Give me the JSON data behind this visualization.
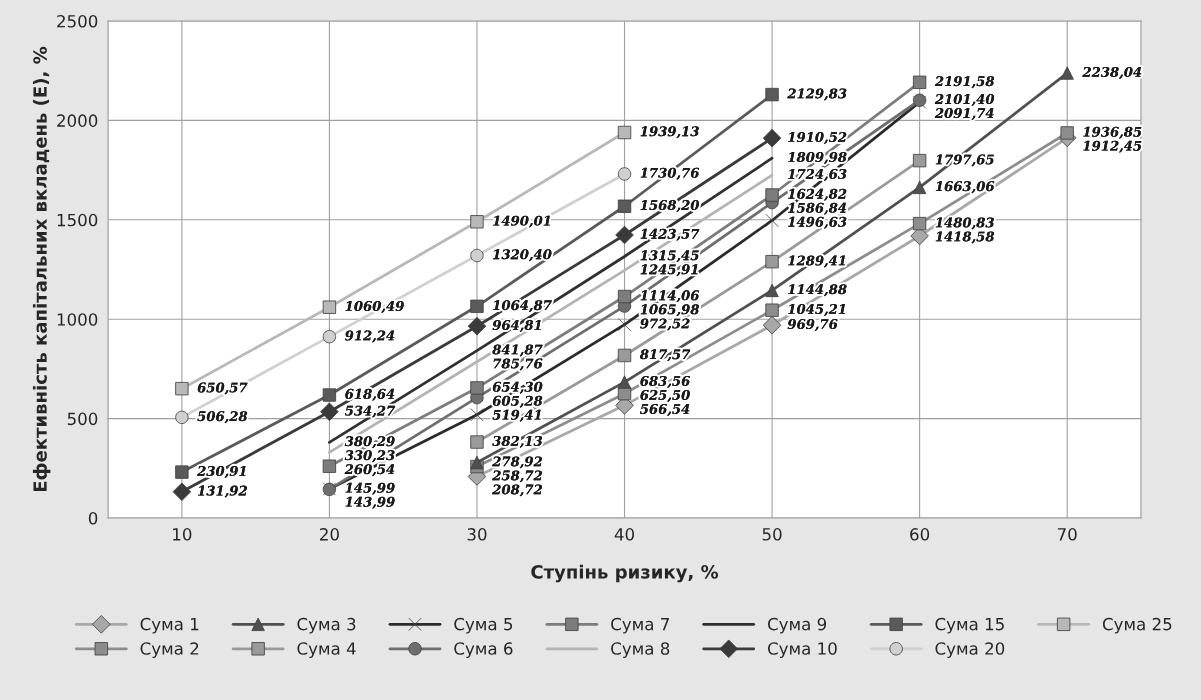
{
  "chart_data": {
    "type": "line",
    "xlabel": "Ступінь ризику, %",
    "ylabel": "Ефективність капітальних вкладень (E), %",
    "categories": [
      "10",
      "20",
      "30",
      "40",
      "50",
      "60",
      "70"
    ],
    "ylim": [
      0,
      2500
    ],
    "yticks": [
      0,
      500,
      1000,
      1500,
      2000,
      2500
    ],
    "grid": true,
    "legend": "bottom",
    "series": [
      {
        "name": "Сума 1",
        "color": "#a8a8a8",
        "marker": "diamond",
        "values": [
          null,
          null,
          208.72,
          566.54,
          969.76,
          1418.58,
          1912.45
        ],
        "value_labels": [
          null,
          null,
          "208,72",
          "566,54",
          "969,76",
          "1418,58",
          "1912,45"
        ]
      },
      {
        "name": "Сума 2",
        "color": "#8c8c8c",
        "marker": "square",
        "values": [
          null,
          null,
          258.72,
          625.5,
          1045.21,
          1480.83,
          1936.85
        ],
        "value_labels": [
          null,
          null,
          "258,72",
          "625,50",
          "1045,21",
          "1480,83",
          "1936,85"
        ]
      },
      {
        "name": "Сума 3",
        "color": "#505050",
        "marker": "triangle",
        "values": [
          null,
          null,
          278.92,
          683.56,
          1144.88,
          1663.06,
          2238.04
        ],
        "value_labels": [
          null,
          null,
          "278,92",
          "683,56",
          "1144,88",
          "1663,06",
          "2238,04"
        ]
      },
      {
        "name": "Сума 4",
        "color": "#9a9a9a",
        "marker": "square",
        "values": [
          null,
          null,
          382.13,
          817.57,
          1289.41,
          1797.65,
          null
        ],
        "value_labels": [
          null,
          null,
          "382,13",
          "817,57",
          "1289,41",
          "1797,65",
          null
        ]
      },
      {
        "name": "Сума 5",
        "color": "#2a2a2a",
        "marker": "cross",
        "values": [
          null,
          145.99,
          519.41,
          972.52,
          1496.63,
          2091.74,
          null
        ],
        "value_labels": [
          null,
          "145,99",
          "519,41",
          "972,52",
          "1496,63",
          "2091,74",
          null
        ]
      },
      {
        "name": "Сума 6",
        "color": "#6e6e6e",
        "marker": "circle",
        "values": [
          null,
          143.99,
          605.28,
          1065.98,
          1586.84,
          2101.4,
          null
        ],
        "value_labels": [
          null,
          "143,99",
          "605,28",
          "1065,98",
          "1586,84",
          "2101,40",
          null
        ]
      },
      {
        "name": "Сума 7",
        "color": "#7c7c7c",
        "marker": "square",
        "values": [
          null,
          260.54,
          654.3,
          1114.06,
          1624.82,
          2191.58,
          null
        ],
        "value_labels": [
          null,
          "260,54",
          "654,30",
          "1114,06",
          "1624,82",
          "2191,58",
          null
        ]
      },
      {
        "name": "Сума 8",
        "color": "#b4b4b4",
        "marker": "none",
        "values": [
          null,
          330.23,
          785.76,
          1245.91,
          1724.63,
          null,
          null
        ],
        "value_labels": [
          null,
          "330,23",
          "785,76",
          "1245,91",
          "1724,63",
          null,
          null
        ]
      },
      {
        "name": "Сума 9",
        "color": "#303030",
        "marker": "none",
        "values": [
          null,
          380.29,
          841.87,
          1315.45,
          1809.98,
          null,
          null
        ],
        "value_labels": [
          null,
          "380,29",
          "841,87",
          "1315,45",
          "1809,98",
          null,
          null
        ]
      },
      {
        "name": "Сума 10",
        "color": "#3a3a3a",
        "marker": "diamond",
        "values": [
          131.92,
          534.27,
          964.81,
          1423.57,
          1910.52,
          null,
          null
        ],
        "value_labels": [
          "131,92",
          "534,27",
          "964,81",
          "1423,57",
          "1910,52",
          null,
          null
        ]
      },
      {
        "name": "Сума 15",
        "color": "#5a5a5a",
        "marker": "square",
        "values": [
          230.91,
          618.64,
          1064.87,
          1568.2,
          2129.83,
          null,
          null
        ],
        "value_labels": [
          "230,91",
          "618,64",
          "1064,87",
          "1568,20",
          "2129,83",
          null,
          null
        ]
      },
      {
        "name": "Сума 20",
        "color": "#d0d0d0",
        "marker": "circle",
        "values": [
          506.28,
          912.24,
          1320.4,
          1730.76,
          null,
          null,
          null
        ],
        "value_labels": [
          "506,28",
          "912,24",
          "1320,40",
          "1730,76",
          null,
          null,
          null
        ]
      },
      {
        "name": "Сума 25",
        "color": "#b8b8b8",
        "marker": "square",
        "values": [
          650.57,
          1060.49,
          1490.01,
          1939.13,
          null,
          null,
          null
        ],
        "value_labels": [
          "650,57",
          "1060,49",
          "1490,01",
          "1939,13",
          null,
          null,
          null
        ]
      }
    ]
  }
}
